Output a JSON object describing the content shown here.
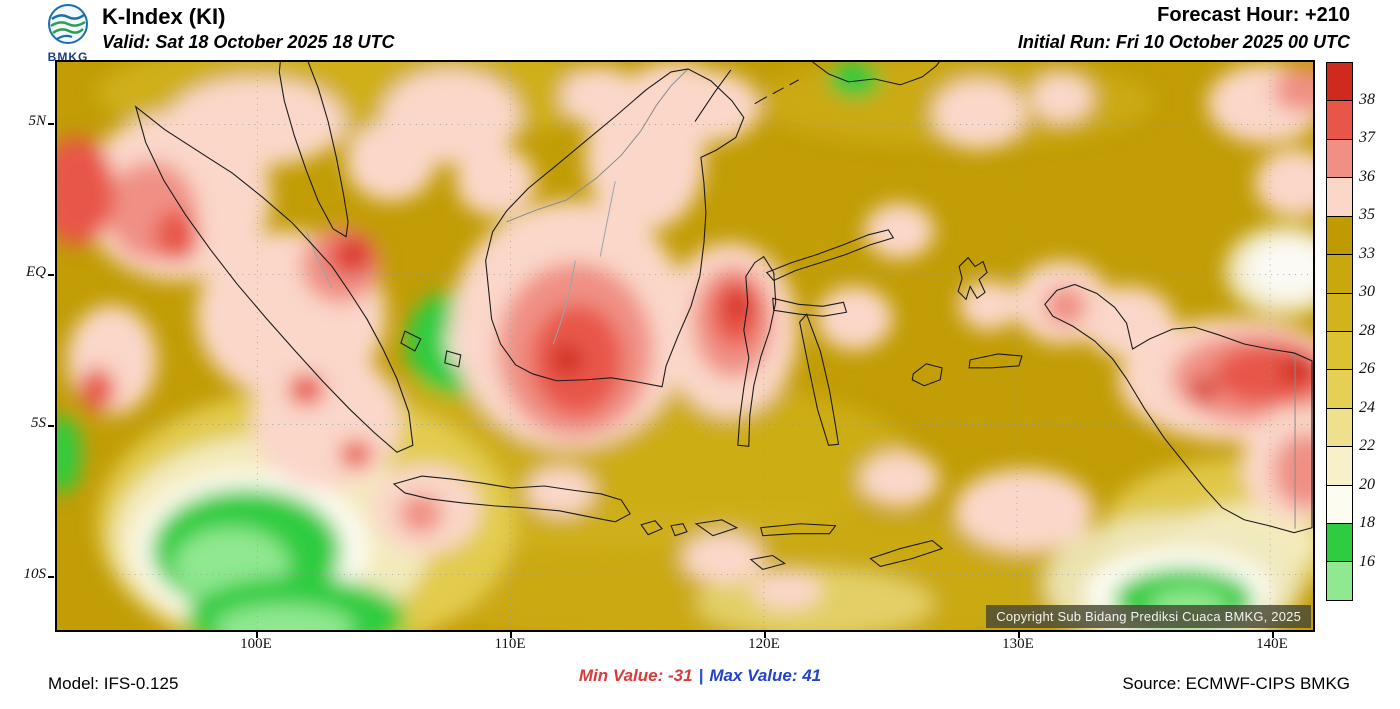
{
  "header": {
    "logo_text": "BMKG",
    "title": "K-Index (KI)",
    "valid": "Valid: Sat 18 October 2025 18 UTC",
    "forecast_hour": "Forecast Hour: +210",
    "initial_run": "Initial Run: Fri 10 October 2025 00 UTC"
  },
  "map": {
    "lat_ticks": [
      "5N",
      "EQ",
      "5S",
      "10S"
    ],
    "lon_ticks": [
      "100E",
      "110E",
      "120E",
      "130E",
      "140E"
    ],
    "copyright": "Copyright Sub Bidang Prediksi Cuaca BMKG, 2025"
  },
  "legend": {
    "levels": [
      "38",
      "37",
      "36",
      "35",
      "33",
      "30",
      "28",
      "26",
      "24",
      "22",
      "20",
      "18",
      "16"
    ],
    "segment_colors_top_to_bottom": [
      "#cf2a1d",
      "#e8564a",
      "#f09084",
      "#fad7c9",
      "#bf9a00",
      "#c9a80e",
      "#d2b31c",
      "#dcc133",
      "#e5cf55",
      "#eee08c",
      "#f7f0c8",
      "#fdfcf0",
      "#2ecc40",
      "#90e890"
    ]
  },
  "footer": {
    "model": "Model: IFS-0.125",
    "min_value": "Min Value: -31",
    "separator": "|",
    "max_value": "Max Value:  41",
    "source": "Source: ECMWF-CIPS BMKG"
  },
  "chart_data": {
    "type": "heatmap",
    "title": "K-Index (KI)",
    "valid_time": "Sat 18 October 2025 18 UTC",
    "initial_run": "Fri 10 October 2025 00 UTC",
    "forecast_hour": "+210",
    "x_ticks": [
      "100E",
      "110E",
      "120E",
      "130E",
      "140E"
    ],
    "y_ticks": [
      "5N",
      "EQ",
      "5S",
      "10S"
    ],
    "colorbar_levels": [
      38,
      37,
      36,
      35,
      33,
      30,
      28,
      26,
      24,
      22,
      20,
      18,
      16
    ],
    "colorbar_colors_top_to_bottom": [
      "#cf2a1d",
      "#e8564a",
      "#f09084",
      "#fad7c9",
      "#bf9a00",
      "#c9a80e",
      "#d2b31c",
      "#dcc133",
      "#e5cf55",
      "#eee08c",
      "#f7f0c8",
      "#fdfcf0",
      "#2ecc40",
      "#90e890"
    ],
    "min_value": -31,
    "max_value": 41,
    "model": "IFS-0.125",
    "source": "ECMWF-CIPS BMKG",
    "legend_position": "right",
    "grid": "dotted"
  }
}
